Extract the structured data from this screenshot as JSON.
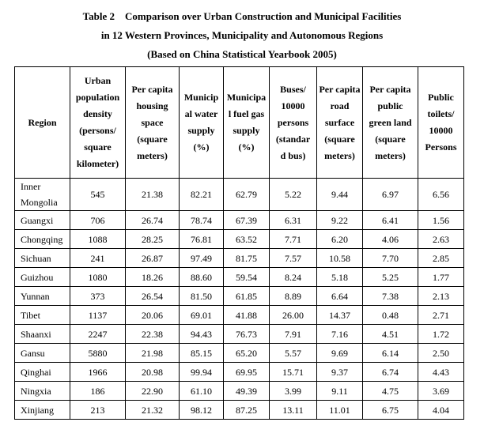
{
  "title": {
    "line1": "Table 2 Comparison over Urban Construction and Municipal Facilities",
    "line2": "in 12 Western Provinces, Municipality and Autonomous Regions",
    "line3": "(Based on China Statistical Yearbook 2005)"
  },
  "table": {
    "columns": [
      {
        "key": "region",
        "label": "Region"
      },
      {
        "key": "urban-population-density",
        "label": "Urban\npopulation\ndensity\n(persons/\nsquare\nkilometer)"
      },
      {
        "key": "per-capita-housing-space",
        "label": "Per capita\nhousing\nspace\n(square\nmeters)"
      },
      {
        "key": "municipal-water-supply",
        "label": "Municip\nal water\nsupply\n(%)"
      },
      {
        "key": "municipal-fuel-gas-supply",
        "label": "Municipa\nl fuel gas\nsupply\n(%)"
      },
      {
        "key": "buses-per-10000-persons",
        "label": "Buses/\n10000\npersons\n(standar\nd bus)"
      },
      {
        "key": "per-capita-road-surface",
        "label": "Per capita\nroad\nsurface\n(square\nmeters)"
      },
      {
        "key": "per-capita-public-green-land",
        "label": "Per capita\npublic\ngreen land\n(square\nmeters)"
      },
      {
        "key": "public-toilets-per-10000-persons",
        "label": "Public\ntoilets/\n10000\nPersons"
      }
    ],
    "rows": [
      {
        "region": "Inner\nMongolia",
        "values": [
          "545",
          "21.38",
          "82.21",
          "62.79",
          "5.22",
          "9.44",
          "6.97",
          "6.56"
        ]
      },
      {
        "region": "Guangxi",
        "values": [
          "706",
          "26.74",
          "78.74",
          "67.39",
          "6.31",
          "9.22",
          "6.41",
          "1.56"
        ]
      },
      {
        "region": "Chongqing",
        "values": [
          "1088",
          "28.25",
          "76.81",
          "63.52",
          "7.71",
          "6.20",
          "4.06",
          "2.63"
        ]
      },
      {
        "region": "Sichuan",
        "values": [
          "241",
          "26.87",
          "97.49",
          "81.75",
          "7.57",
          "10.58",
          "7.70",
          "2.85"
        ]
      },
      {
        "region": "Guizhou",
        "values": [
          "1080",
          "18.26",
          "88.60",
          "59.54",
          "8.24",
          "5.18",
          "5.25",
          "1.77"
        ]
      },
      {
        "region": "Yunnan",
        "values": [
          "373",
          "26.54",
          "81.50",
          "61.85",
          "8.89",
          "6.64",
          "7.38",
          "2.13"
        ]
      },
      {
        "region": "Tibet",
        "values": [
          "1137",
          "20.06",
          "69.01",
          "41.88",
          "26.00",
          "14.37",
          "0.48",
          "2.71"
        ]
      },
      {
        "region": "Shaanxi",
        "values": [
          "2247",
          "22.38",
          "94.43",
          "76.73",
          "7.91",
          "7.16",
          "4.51",
          "1.72"
        ]
      },
      {
        "region": "Gansu",
        "values": [
          "5880",
          "21.98",
          "85.15",
          "65.20",
          "5.57",
          "9.69",
          "6.14",
          "2.50"
        ]
      },
      {
        "region": "Qinghai",
        "values": [
          "1966",
          "20.98",
          "99.94",
          "69.95",
          "15.71",
          "9.37",
          "6.74",
          "4.43"
        ]
      },
      {
        "region": "Ningxia",
        "values": [
          "186",
          "22.90",
          "61.10",
          "49.39",
          "3.99",
          "9.11",
          "4.75",
          "3.69"
        ]
      },
      {
        "region": "Xinjiang",
        "values": [
          "213",
          "21.32",
          "98.12",
          "87.25",
          "13.11",
          "11.01",
          "6.75",
          "4.04"
        ]
      }
    ]
  }
}
